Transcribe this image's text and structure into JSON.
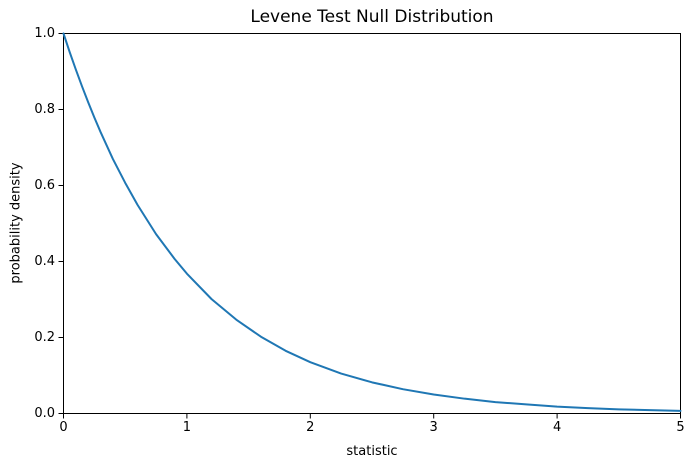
{
  "figure": {
    "background": "#ffffff",
    "axis_color": "#000000"
  },
  "chart_data": {
    "type": "line",
    "title": "Levene Test Null Distribution",
    "xlabel": "statistic",
    "ylabel": "probability density",
    "xlim": [
      0,
      5
    ],
    "ylim": [
      0.0,
      1.0
    ],
    "xticks": [
      0,
      1,
      2,
      3,
      4,
      5
    ],
    "xtick_labels": [
      "0",
      "1",
      "2",
      "3",
      "4",
      "5"
    ],
    "yticks": [
      0.0,
      0.2,
      0.4,
      0.6,
      0.8,
      1.0
    ],
    "ytick_labels": [
      "0.0",
      "0.2",
      "0.4",
      "0.6",
      "0.8",
      "1.0"
    ],
    "grid": false,
    "legend": null,
    "line_color": "#1f77b4",
    "x": [
      0,
      0.05,
      0.1,
      0.15,
      0.2,
      0.25,
      0.3,
      0.4,
      0.5,
      0.6,
      0.75,
      0.9,
      1.0,
      1.2,
      1.4,
      1.6,
      1.8,
      2.0,
      2.25,
      2.5,
      2.75,
      3.0,
      3.25,
      3.5,
      3.75,
      4.0,
      4.25,
      4.5,
      4.75,
      5.0
    ],
    "y": [
      1.0,
      0.951,
      0.905,
      0.861,
      0.819,
      0.779,
      0.741,
      0.67,
      0.607,
      0.549,
      0.472,
      0.407,
      0.368,
      0.301,
      0.247,
      0.202,
      0.165,
      0.135,
      0.105,
      0.082,
      0.064,
      0.05,
      0.039,
      0.03,
      0.024,
      0.018,
      0.014,
      0.011,
      0.009,
      0.007
    ]
  }
}
